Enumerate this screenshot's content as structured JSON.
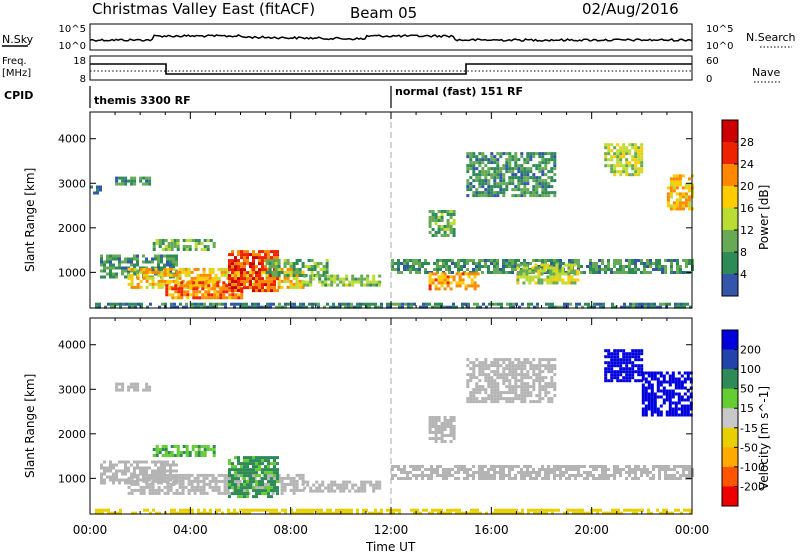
{
  "header": {
    "title": "Christmas Valley East (fitACF)",
    "beam": "Beam 05",
    "date": "02/Aug/2016"
  },
  "panels": {
    "nsky": {
      "label": "N.Sky",
      "right_label": "N.Search",
      "left_ticks": [
        "10^5",
        "10^0"
      ],
      "right_ticks": [
        "10^5",
        "10^0"
      ]
    },
    "freq": {
      "label_line1": "Freq.",
      "label_line2": "[MHz]",
      "right_label": "Nave",
      "left_ticks": [
        "18",
        "8"
      ],
      "right_ticks": [
        "60",
        "0"
      ]
    },
    "cpid": {
      "label": "CPID",
      "programs": [
        "themis 3300 RF",
        "normal (fast) 151 RF"
      ]
    }
  },
  "colors": {
    "power": [
      "#0000ee",
      "#3355aa",
      "#2e8b57",
      "#66aa55",
      "#bbdd33",
      "#ffcc00",
      "#ff8800",
      "#ee2200",
      "#cc0000"
    ],
    "velocity": [
      "#0000dd",
      "#2244aa",
      "#2e8b57",
      "#66cc33",
      "#c8c8c8",
      "#e8d000",
      "#ffaa00",
      "#ff5500",
      "#ee0000"
    ],
    "ground_scatter": "#b4b4b4",
    "background": "#ffffff"
  },
  "chart_data": [
    {
      "type": "heatmap",
      "name": "power",
      "ylabel": "Slant Range [km]",
      "yticks": [
        "4000",
        "3000",
        "2000",
        "1000"
      ],
      "ylim": [
        200,
        4600
      ],
      "xlim_hours": [
        0,
        24
      ],
      "colorbar": {
        "label": "Power [dB]",
        "ticks": [
          "28",
          "24",
          "20",
          "16",
          "12",
          "8",
          "4"
        ],
        "range": [
          0,
          32
        ]
      },
      "regions": [
        {
          "t0": 0.2,
          "t1": 24,
          "r0": 200,
          "r1": 320,
          "v": 8
        },
        {
          "t0": 1.0,
          "t1": 2.4,
          "r0": 2950,
          "r1": 3150,
          "v": 10
        },
        {
          "t0": 0.0,
          "t1": 0.4,
          "r0": 2750,
          "r1": 2950,
          "v": 8
        },
        {
          "t0": 0.4,
          "t1": 3.5,
          "r0": 900,
          "r1": 1400,
          "v": 10
        },
        {
          "t0": 2.5,
          "t1": 5.0,
          "r0": 1500,
          "r1": 1750,
          "v": 12
        },
        {
          "t0": 1.5,
          "t1": 8.5,
          "r0": 650,
          "r1": 1100,
          "v": 20
        },
        {
          "t0": 3.0,
          "t1": 6.0,
          "r0": 450,
          "r1": 800,
          "v": 24
        },
        {
          "t0": 5.5,
          "t1": 7.5,
          "r0": 600,
          "r1": 1500,
          "v": 26
        },
        {
          "t0": 7.0,
          "t1": 9.5,
          "r0": 900,
          "r1": 1300,
          "v": 12
        },
        {
          "t0": 8.5,
          "t1": 11.5,
          "r0": 700,
          "r1": 950,
          "v": 14
        },
        {
          "t0": 12.0,
          "t1": 24.0,
          "r0": 1000,
          "r1": 1300,
          "v": 10
        },
        {
          "t0": 13.5,
          "t1": 15.5,
          "r0": 650,
          "r1": 1000,
          "v": 22
        },
        {
          "t0": 17.0,
          "t1": 19.5,
          "r0": 750,
          "r1": 1200,
          "v": 16
        },
        {
          "t0": 13.5,
          "t1": 14.5,
          "r0": 1800,
          "r1": 2400,
          "v": 12
        },
        {
          "t0": 15.0,
          "t1": 18.5,
          "r0": 2700,
          "r1": 3700,
          "v": 10
        },
        {
          "t0": 20.5,
          "t1": 22.0,
          "r0": 3200,
          "r1": 3900,
          "v": 16
        },
        {
          "t0": 23.0,
          "t1": 24.0,
          "r0": 2400,
          "r1": 3200,
          "v": 20
        }
      ]
    },
    {
      "type": "heatmap",
      "name": "velocity",
      "ylabel": "Slant Range [km]",
      "yticks": [
        "4000",
        "3000",
        "2000",
        "1000"
      ],
      "ylim": [
        200,
        4600
      ],
      "xlim_hours": [
        0,
        24
      ],
      "xticks": [
        "00:00",
        "04:00",
        "08:00",
        "12:00",
        "16:00",
        "20:00",
        "00:00"
      ],
      "xlabel": "Time UT",
      "colorbar": {
        "label": "Velocity [m s^-1]",
        "ticks": [
          "200",
          "100",
          "50",
          "15",
          "-15",
          "-50",
          "-100",
          "-200"
        ]
      },
      "regions": [
        {
          "t0": 0.2,
          "t1": 24,
          "r0": 200,
          "r1": 320,
          "v": -30
        },
        {
          "t0": 1.0,
          "t1": 2.4,
          "r0": 2950,
          "r1": 3150,
          "v": 0
        },
        {
          "t0": 0.4,
          "t1": 3.5,
          "r0": 900,
          "r1": 1400,
          "v": 0
        },
        {
          "t0": 2.5,
          "t1": 5.0,
          "r0": 1500,
          "r1": 1750,
          "v": 30
        },
        {
          "t0": 1.5,
          "t1": 8.5,
          "r0": 650,
          "r1": 1100,
          "v": 0
        },
        {
          "t0": 5.5,
          "t1": 7.5,
          "r0": 600,
          "r1": 1500,
          "v": 40
        },
        {
          "t0": 8.5,
          "t1": 11.5,
          "r0": 700,
          "r1": 950,
          "v": 0
        },
        {
          "t0": 12.0,
          "t1": 24.0,
          "r0": 1000,
          "r1": 1300,
          "v": 0
        },
        {
          "t0": 13.5,
          "t1": 14.5,
          "r0": 1800,
          "r1": 2400,
          "v": 0
        },
        {
          "t0": 15.0,
          "t1": 18.5,
          "r0": 2700,
          "r1": 3700,
          "v": 0
        },
        {
          "t0": 20.5,
          "t1": 22.0,
          "r0": 3200,
          "r1": 3900,
          "v": 200
        },
        {
          "t0": 22.0,
          "t1": 24.0,
          "r0": 2400,
          "r1": 3400,
          "v": 180
        }
      ]
    }
  ]
}
